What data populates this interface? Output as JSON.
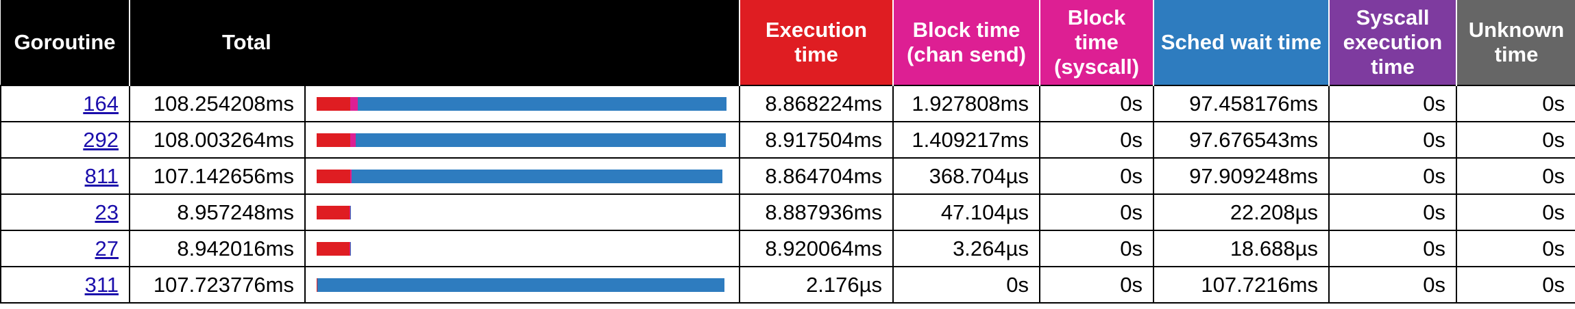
{
  "colors": {
    "header_bg": "#000000",
    "execution": "#df1d22",
    "block_chan_send": "#dd1f93",
    "block_syscall": "#dd1f93",
    "sched_wait": "#2e7cbf",
    "syscall_execution": "#7e3b9f",
    "unknown": "#666666"
  },
  "headers": {
    "goroutine": "Goroutine",
    "total": "Total",
    "execution": "Execution time",
    "block_chan_send": "Block time (chan send)",
    "block_syscall": "Block time (syscall)",
    "sched_wait": "Sched wait time",
    "syscall_execution": "Syscall execution time",
    "unknown": "Unknown time"
  },
  "rows": [
    {
      "goroutine": "164",
      "total": "108.254208ms",
      "execution": "8.868224ms",
      "block_chan_send": "1.927808ms",
      "block_syscall": "0s",
      "sched_wait": "97.458176ms",
      "syscall_execution": "0s",
      "unknown": "0s",
      "bar": {
        "execution": 0.0819,
        "block_chan_send": 0.0178,
        "sched_wait": 0.9003
      }
    },
    {
      "goroutine": "292",
      "total": "108.003264ms",
      "execution": "8.917504ms",
      "block_chan_send": "1.409217ms",
      "block_syscall": "0s",
      "sched_wait": "97.676543ms",
      "syscall_execution": "0s",
      "unknown": "0s",
      "bar": {
        "execution": 0.0826,
        "block_chan_send": 0.013,
        "sched_wait": 0.9044
      }
    },
    {
      "goroutine": "811",
      "total": "107.142656ms",
      "execution": "8.864704ms",
      "block_chan_send": "368.704µs",
      "block_syscall": "0s",
      "sched_wait": "97.909248ms",
      "syscall_execution": "0s",
      "unknown": "0s",
      "bar": {
        "execution": 0.0827,
        "block_chan_send": 0.0034,
        "sched_wait": 0.9138
      }
    },
    {
      "goroutine": "23",
      "total": "8.957248ms",
      "execution": "8.887936ms",
      "block_chan_send": "47.104µs",
      "block_syscall": "0s",
      "sched_wait": "22.208µs",
      "syscall_execution": "0s",
      "unknown": "0s",
      "bar": {
        "execution": 0.9923,
        "block_chan_send": 0.0053,
        "sched_wait": 0.0025
      }
    },
    {
      "goroutine": "27",
      "total": "8.942016ms",
      "execution": "8.920064ms",
      "block_chan_send": "3.264µs",
      "block_syscall": "0s",
      "sched_wait": "18.688µs",
      "syscall_execution": "0s",
      "unknown": "0s",
      "bar": {
        "execution": 0.9975,
        "block_chan_send": 0.0004,
        "sched_wait": 0.0021
      }
    },
    {
      "goroutine": "311",
      "total": "107.723776ms",
      "execution": "2.176µs",
      "block_chan_send": "0s",
      "block_syscall": "0s",
      "sched_wait": "107.7216ms",
      "syscall_execution": "0s",
      "unknown": "0s",
      "bar": {
        "execution": 2e-05,
        "block_chan_send": 0,
        "sched_wait": 0.99998
      }
    }
  ]
}
